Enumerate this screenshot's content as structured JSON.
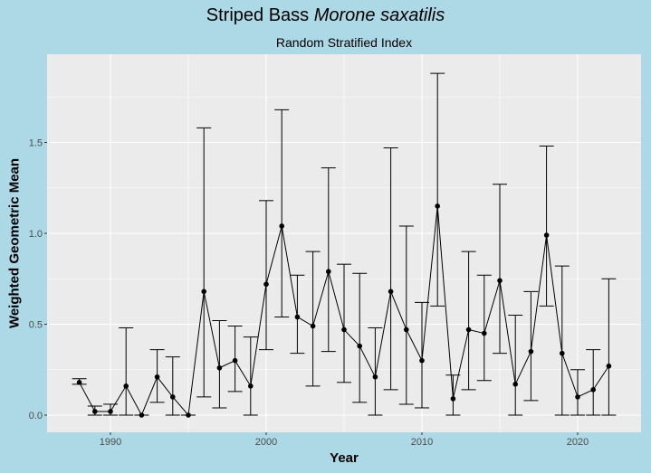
{
  "chart_data": {
    "type": "line",
    "title_main": "Striped Bass",
    "title_italic": "Morone saxatilis",
    "subtitle": "Random Stratified Index",
    "xlabel": "Year",
    "ylabel": "Weighted Geometric Mean",
    "xlim": [
      1986,
      2024
    ],
    "ylim": [
      -0.08,
      1.98
    ],
    "xticks": [
      1990,
      2000,
      2010,
      2020
    ],
    "yticks": [
      0.0,
      0.5,
      1.0,
      1.5
    ],
    "ytick_labels": [
      "0.0",
      "0.5",
      "1.0",
      "1.5"
    ],
    "grid": true,
    "colors": {
      "background": "#add8e6",
      "panel": "#ebebeb",
      "grid": "#ffffff",
      "series": "#000000"
    },
    "x": [
      1988,
      1989,
      1990,
      1991,
      1992,
      1993,
      1994,
      1995,
      1996,
      1997,
      1998,
      1999,
      2000,
      2001,
      2002,
      2003,
      2004,
      2005,
      2006,
      2007,
      2008,
      2009,
      2010,
      2011,
      2012,
      2013,
      2014,
      2015,
      2016,
      2017,
      2018,
      2019,
      2020,
      2021,
      2022
    ],
    "y": [
      0.18,
      0.02,
      0.02,
      0.16,
      0.0,
      0.21,
      0.1,
      0.0,
      0.68,
      0.26,
      0.3,
      0.16,
      0.72,
      1.04,
      0.54,
      0.49,
      0.79,
      0.47,
      0.38,
      0.21,
      0.68,
      0.47,
      0.3,
      1.15,
      0.09,
      0.47,
      0.45,
      0.74,
      0.17,
      0.35,
      0.99,
      0.34,
      0.1,
      0.14,
      0.27
    ],
    "lower": [
      0.17,
      0.0,
      0.0,
      0.0,
      0.0,
      0.07,
      0.0,
      0.0,
      0.1,
      0.04,
      0.13,
      0.0,
      0.36,
      0.54,
      0.34,
      0.16,
      0.35,
      0.18,
      0.07,
      0.0,
      0.14,
      0.06,
      0.04,
      0.6,
      0.0,
      0.14,
      0.19,
      0.34,
      0.0,
      0.08,
      0.6,
      0.0,
      0.0,
      0.0,
      0.0
    ],
    "upper": [
      0.2,
      0.05,
      0.06,
      0.48,
      0.0,
      0.36,
      0.32,
      0.0,
      1.58,
      0.52,
      0.49,
      0.43,
      1.18,
      1.68,
      0.77,
      0.9,
      1.36,
      0.83,
      0.78,
      0.48,
      1.47,
      1.04,
      0.62,
      1.88,
      0.22,
      0.9,
      0.77,
      1.27,
      0.55,
      0.68,
      1.48,
      0.82,
      0.25,
      0.36,
      0.75
    ]
  }
}
